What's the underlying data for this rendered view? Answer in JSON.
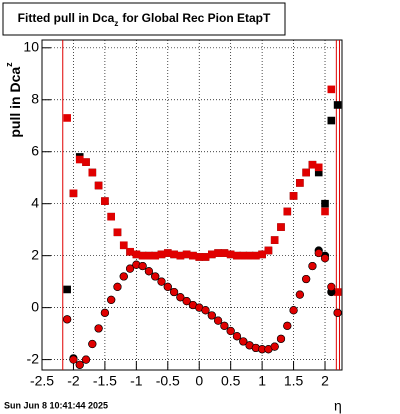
{
  "chart_data": {
    "type": "scatter",
    "title_parts": [
      "Fitted pull in Dca",
      "z",
      "for Global Rec Pion EtapT"
    ],
    "ylabel_parts": [
      "pull in Dca",
      "z"
    ],
    "xlabel": "η",
    "timestamp": "Sun Jun  8 10:41:44 2025",
    "xlim": [
      -2.5,
      2.27
    ],
    "ylim": [
      -2.4,
      10.3
    ],
    "xticks": [
      -2.5,
      -2,
      -1.5,
      -1,
      -0.5,
      0,
      0.5,
      1,
      1.5,
      2
    ],
    "yticks": [
      -2,
      0,
      2,
      4,
      6,
      8,
      10
    ],
    "grid": true,
    "vlines": [
      -2.17,
      2.18,
      2.23
    ],
    "vline_color": "#e00000",
    "x": [
      -2.1,
      -2.0,
      -1.9,
      -1.8,
      -1.7,
      -1.6,
      -1.5,
      -1.4,
      -1.3,
      -1.2,
      -1.1,
      -1.0,
      -0.9,
      -0.8,
      -0.7,
      -0.6,
      -0.5,
      -0.4,
      -0.3,
      -0.2,
      -0.1,
      0,
      0.1,
      0.2,
      0.3,
      0.4,
      0.5,
      0.6,
      0.7,
      0.8,
      0.9,
      1.0,
      1.1,
      1.2,
      1.3,
      1.4,
      1.5,
      1.6,
      1.7,
      1.8,
      1.9,
      2.0,
      2.1,
      2.2
    ],
    "series": [
      {
        "color": "#000000",
        "marker": "square",
        "values": [
          0.7,
          4.4,
          5.8,
          5.6,
          5.2,
          4.7,
          4.1,
          3.5,
          2.9,
          2.4,
          2.15,
          2.05,
          2.0,
          2.0,
          2.0,
          2.05,
          2.1,
          2.05,
          2.0,
          2.05,
          2.0,
          1.95,
          1.95,
          2.05,
          2.1,
          2.1,
          2.05,
          2.0,
          2.0,
          2.0,
          2.0,
          2.05,
          2.2,
          2.6,
          3.1,
          3.7,
          4.3,
          4.8,
          5.2,
          5.5,
          5.2,
          4.0,
          7.2,
          7.8
        ]
      },
      {
        "color": "#e00000",
        "marker": "square",
        "values": [
          7.3,
          4.4,
          5.7,
          5.6,
          5.2,
          4.7,
          4.1,
          3.5,
          2.9,
          2.4,
          2.15,
          2.05,
          2.0,
          2.0,
          2.0,
          2.05,
          2.1,
          2.05,
          2.0,
          2.05,
          2.0,
          1.95,
          1.95,
          2.05,
          2.1,
          2.1,
          2.05,
          2.0,
          2.0,
          2.0,
          2.0,
          2.05,
          2.2,
          2.6,
          3.1,
          3.7,
          4.3,
          4.8,
          5.2,
          5.5,
          5.4,
          3.7,
          8.4,
          0.6
        ]
      },
      {
        "color": "#000000",
        "marker": "circle",
        "values": [
          -0.45,
          -1.95,
          -2.2,
          -2.0,
          -1.4,
          -0.8,
          -0.2,
          0.3,
          0.8,
          1.2,
          1.5,
          1.65,
          1.6,
          1.4,
          1.2,
          1.0,
          0.8,
          0.6,
          0.4,
          0.25,
          0.1,
          0.0,
          -0.1,
          -0.3,
          -0.5,
          -0.7,
          -0.9,
          -1.1,
          -1.3,
          -1.45,
          -1.55,
          -1.6,
          -1.6,
          -1.5,
          -1.2,
          -0.7,
          -0.1,
          0.5,
          1.1,
          1.6,
          2.2,
          2.0,
          0.6,
          -0.2
        ]
      },
      {
        "color": "#e00000",
        "marker": "circle",
        "values": [
          -0.45,
          -2.0,
          -2.2,
          -2.0,
          -1.4,
          -0.8,
          -0.2,
          0.3,
          0.8,
          1.2,
          1.5,
          1.65,
          1.6,
          1.4,
          1.2,
          1.0,
          0.8,
          0.6,
          0.4,
          0.25,
          0.1,
          0.0,
          -0.1,
          -0.3,
          -0.5,
          -0.7,
          -0.9,
          -1.1,
          -1.3,
          -1.45,
          -1.55,
          -1.6,
          -1.6,
          -1.5,
          -1.2,
          -0.7,
          -0.1,
          0.5,
          1.1,
          1.6,
          2.1,
          1.9,
          0.8,
          -0.2
        ]
      }
    ]
  }
}
